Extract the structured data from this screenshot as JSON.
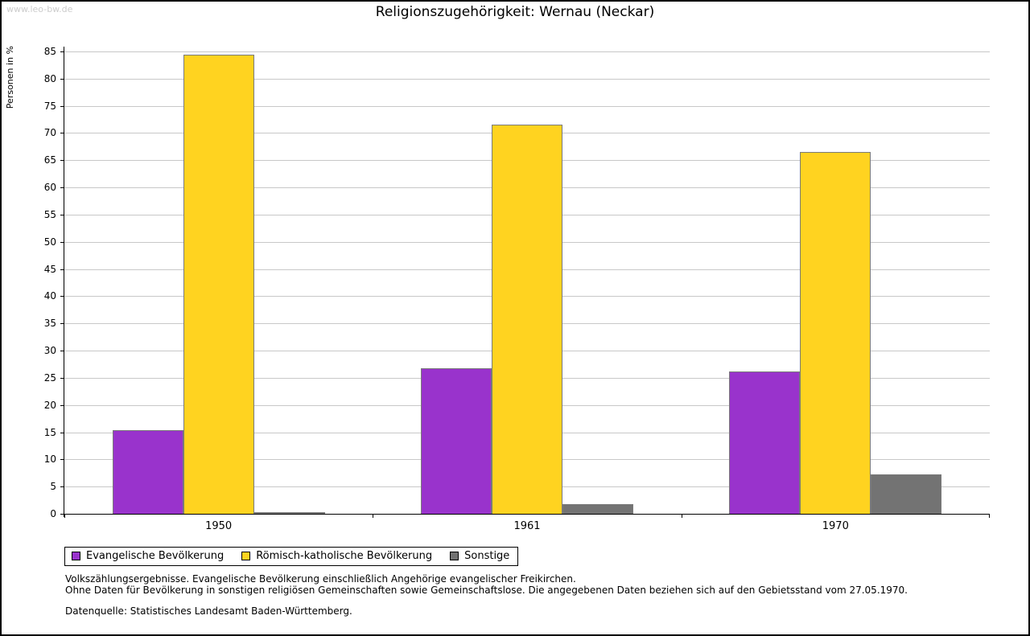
{
  "watermark": "www.leo-bw.de",
  "title": "Religionszugehörigkeit: Wernau (Neckar)",
  "chart_data": {
    "type": "bar",
    "title": "Religionszugehörigkeit: Wernau (Neckar)",
    "xlabel": "",
    "ylabel": "Personen in %",
    "ylim": [
      0,
      85
    ],
    "ytick_step": 5,
    "grid": true,
    "legend_position": "bottom-left",
    "categories": [
      "1950",
      "1961",
      "1970"
    ],
    "series": [
      {
        "name": "Evangelische Bevölkerung",
        "color": "#9933cc",
        "values": [
          15.3,
          26.8,
          26.1
        ]
      },
      {
        "name": "Römisch-katholische Bevölkerung",
        "color": "#ffd320",
        "values": [
          84.4,
          71.5,
          66.5
        ]
      },
      {
        "name": "Sonstige",
        "color": "#737373",
        "values": [
          0.3,
          1.8,
          7.3
        ]
      }
    ]
  },
  "footnotes": [
    "Volkszählungsergebnisse. Evangelische Bevölkerung einschließlich Angehörige evangelischer Freikirchen.",
    "Ohne Daten für Bevölkerung in sonstigen religiösen Gemeinschaften sowie Gemeinschaftslose. Die angegebenen Daten beziehen sich auf den Gebietsstand vom 27.05.1970.",
    "Datenquelle: Statistisches Landesamt Baden-Württemberg."
  ]
}
